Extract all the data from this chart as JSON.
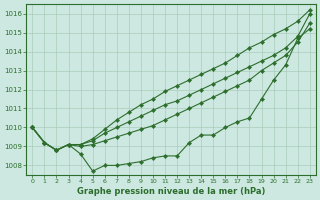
{
  "title": "Graphe pression niveau de la mer (hPa)",
  "bg_color": "#cce8e0",
  "grid_color": "#aaccbb",
  "line_color": "#2d6e2d",
  "xlim": [
    -0.5,
    23.5
  ],
  "ylim": [
    1007.5,
    1016.5
  ],
  "yticks": [
    1008,
    1009,
    1010,
    1011,
    1012,
    1013,
    1014,
    1015,
    1016
  ],
  "xticks": [
    0,
    1,
    2,
    3,
    4,
    5,
    6,
    7,
    8,
    9,
    10,
    11,
    12,
    13,
    14,
    15,
    16,
    17,
    18,
    19,
    20,
    21,
    22,
    23
  ],
  "line1": [
    1010.0,
    1009.2,
    1008.8,
    1009.1,
    1008.6,
    1007.7,
    1008.0,
    1008.0,
    1008.1,
    1008.2,
    1008.4,
    1008.5,
    1008.5,
    1009.2,
    1009.6,
    1009.6,
    1010.0,
    1010.3,
    1010.5,
    1011.5,
    1012.5,
    1013.3,
    1014.7,
    1015.2
  ],
  "line2": [
    1010.0,
    1009.2,
    1008.8,
    1009.1,
    1009.0,
    1009.1,
    1009.3,
    1009.5,
    1009.7,
    1009.9,
    1010.1,
    1010.4,
    1010.7,
    1011.0,
    1011.3,
    1011.6,
    1011.9,
    1012.2,
    1012.5,
    1013.0,
    1013.4,
    1013.8,
    1014.5,
    1015.5
  ],
  "line3": [
    1010.0,
    1009.2,
    1008.8,
    1009.1,
    1009.1,
    1009.3,
    1009.7,
    1010.0,
    1010.3,
    1010.6,
    1010.9,
    1011.2,
    1011.4,
    1011.7,
    1012.0,
    1012.3,
    1012.6,
    1012.9,
    1013.2,
    1013.5,
    1013.8,
    1014.2,
    1014.8,
    1016.0
  ],
  "line4": [
    1010.0,
    1009.2,
    1008.8,
    1009.1,
    1009.1,
    1009.4,
    1009.9,
    1010.4,
    1010.8,
    1011.2,
    1011.5,
    1011.9,
    1012.2,
    1012.5,
    1012.8,
    1013.1,
    1013.4,
    1013.8,
    1014.2,
    1014.5,
    1014.9,
    1015.2,
    1015.6,
    1016.2
  ]
}
